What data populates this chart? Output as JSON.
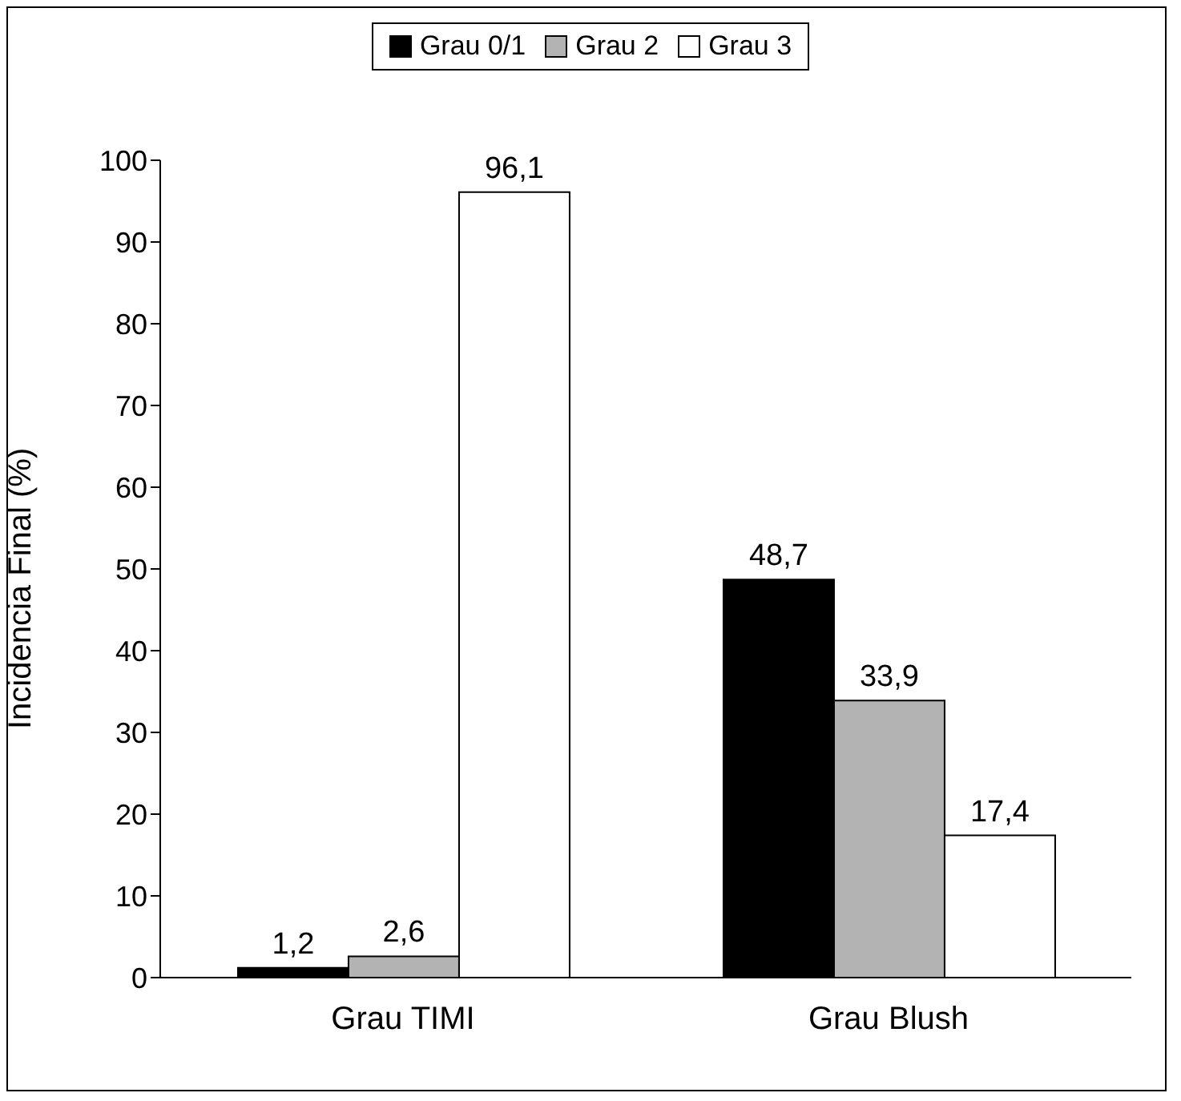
{
  "chart_data": {
    "type": "bar",
    "ylabel": "Incidencia Final (%)",
    "categories": [
      "Grau TIMI",
      "Grau Blush"
    ],
    "series": [
      {
        "name": "Grau 0/1",
        "color": "#000000",
        "values": [
          1.2,
          48.7
        ],
        "value_labels": [
          "1,2",
          "48,7"
        ]
      },
      {
        "name": "Grau 2",
        "color": "#b3b3b3",
        "values": [
          2.6,
          33.9
        ],
        "value_labels": [
          "2,6",
          "33,9"
        ]
      },
      {
        "name": "Grau 3",
        "color": "#ffffff",
        "values": [
          96.1,
          17.4
        ],
        "value_labels": [
          "96,1",
          "17,4"
        ]
      }
    ],
    "ylim": [
      0,
      100
    ],
    "yticks": [
      0,
      10,
      20,
      30,
      40,
      50,
      60,
      70,
      80,
      90,
      100
    ],
    "grid": false,
    "legend": "top"
  }
}
